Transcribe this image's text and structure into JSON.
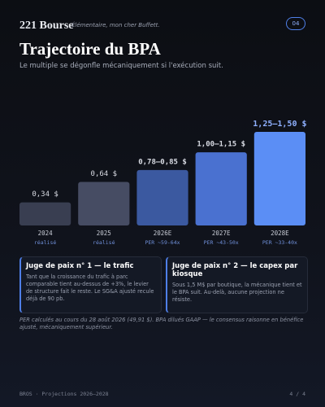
{
  "header": {
    "brand": "221 Bourse",
    "tagline": "Élémentaire, mon cher Buffett.",
    "badge": "04"
  },
  "chart_data": {
    "type": "bar",
    "title": "Trajectoire du BPA",
    "subtitle": "Le multiple se dégonfle mécaniquement si l'exécution suit.",
    "categories": [
      "2024",
      "2025",
      "2026E",
      "2027E",
      "2028E"
    ],
    "sublabels": [
      "réalisé",
      "réalisé",
      "PER ~59-64x",
      "PER ~43-50x",
      "PER ~33-40x"
    ],
    "values": [
      0.34,
      0.64,
      0.815,
      1.075,
      1.375
    ],
    "value_labels": [
      "0,34 $",
      "0,64 $",
      "0,78–0,85 $",
      "1,00–1,15 $",
      "1,25–1,50 $"
    ],
    "colors": [
      "#393e51",
      "#464c63",
      "#3b59a0",
      "#4a71d0",
      "#5b8ef5"
    ]
  },
  "cards": [
    {
      "title": "Juge de paix n° 1 — le trafic",
      "text": "Tant que la croissance du trafic à parc comparable tient au-dessus de +3%, le levier de structure fait le reste. Le SG&A ajusté recule déjà de 90 pb."
    },
    {
      "title": "Juge de paix n° 2 — le capex par kiosque",
      "text": "Sous 1,5 M$ par boutique, la mécanique tient et le BPA suit. Au-delà, aucune projection ne résiste."
    }
  ],
  "footnote": "PER calculés au cours du 28 août 2026 (49,91 $). BPA dilués GAAP — le consensus raisonne en bénéfice ajusté, mécaniquement supérieur.",
  "footer": {
    "left": "BROS · Projections 2026–2028",
    "right": "4 / 4"
  }
}
